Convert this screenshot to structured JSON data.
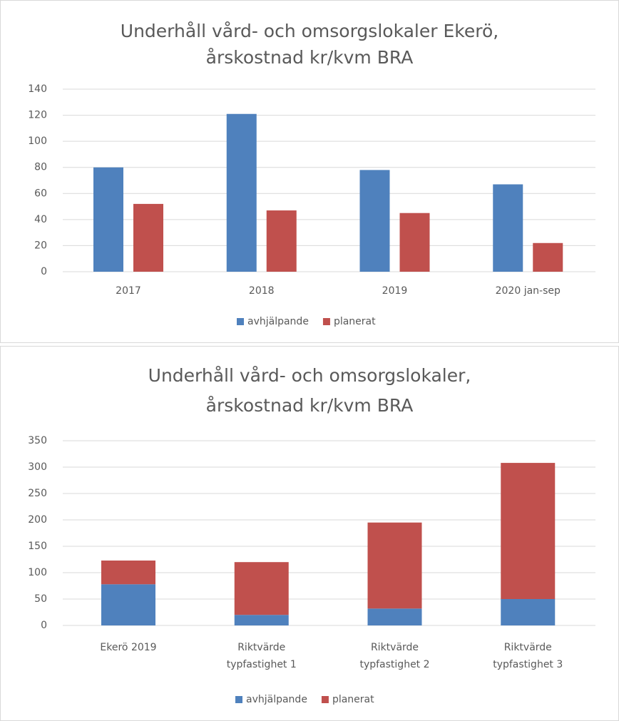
{
  "chart_data": [
    {
      "type": "bar",
      "stacked": false,
      "title": [
        "Underhåll vård- och omsorgslokaler Ekerö,",
        "årskostnad kr/kvm BRA"
      ],
      "categories": [
        [
          "2017"
        ],
        [
          "2018"
        ],
        [
          "2019"
        ],
        [
          "2020 jan-sep"
        ]
      ],
      "series": [
        {
          "name": "avhjälpande",
          "color": "#4f81bd",
          "values": [
            80,
            121,
            78,
            67
          ]
        },
        {
          "name": "planerat",
          "color": "#c0504d",
          "values": [
            52,
            47,
            45,
            22
          ]
        }
      ],
      "ylim": [
        0,
        140
      ],
      "yticks": [
        0,
        20,
        40,
        60,
        80,
        100,
        120,
        140
      ],
      "grid": true,
      "legend": "bottom"
    },
    {
      "type": "bar",
      "stacked": true,
      "title": [
        "Underhåll vård- och omsorgslokaler,",
        "årskostnad kr/kvm BRA"
      ],
      "categories": [
        [
          "Ekerö 2019"
        ],
        [
          "Riktvärde",
          "typfastighet 1"
        ],
        [
          "Riktvärde",
          "typfastighet 2"
        ],
        [
          "Riktvärde",
          "typfastighet 3"
        ]
      ],
      "series": [
        {
          "name": "avhjälpande",
          "color": "#4f81bd",
          "values": [
            78,
            20,
            32,
            50
          ]
        },
        {
          "name": "planerat",
          "color": "#c0504d",
          "values": [
            45,
            100,
            163,
            258
          ]
        }
      ],
      "ylim": [
        0,
        350
      ],
      "yticks": [
        0,
        50,
        100,
        150,
        200,
        250,
        300,
        350
      ],
      "grid": true,
      "legend": "bottom"
    }
  ]
}
